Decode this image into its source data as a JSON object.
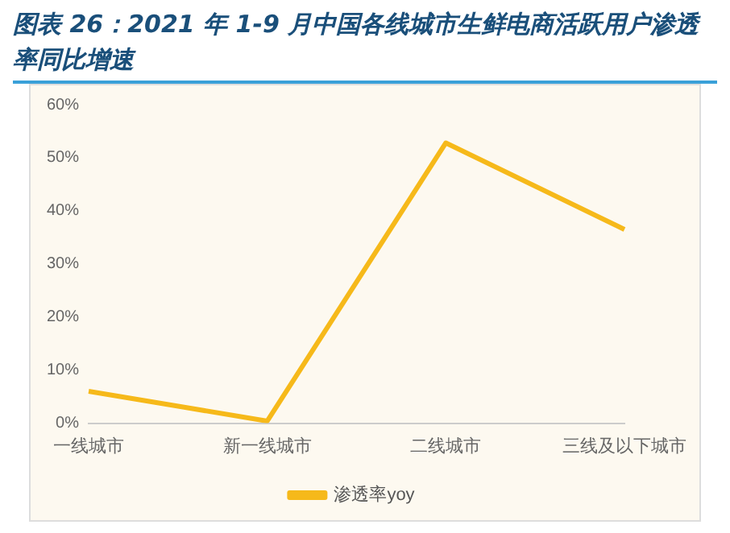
{
  "chart_data": {
    "type": "line",
    "title": "图表 26：2021 年 1-9 月中国各线城市生鲜电商活跃用户渗透率同比增速",
    "categories": [
      "一线城市",
      "新一线城市",
      "二线城市",
      "三线及以下城市"
    ],
    "series": [
      {
        "name": "渗透率yoy",
        "color": "#f6b91a",
        "values": [
          6.0,
          0.4,
          52.8,
          36.5
        ]
      }
    ],
    "ylim": [
      0,
      60
    ],
    "yticks": [
      {
        "value": 0,
        "label": "0%"
      },
      {
        "value": 10,
        "label": "10%"
      },
      {
        "value": 20,
        "label": "20%"
      },
      {
        "value": 30,
        "label": "30%"
      },
      {
        "value": 40,
        "label": "40%"
      },
      {
        "value": 50,
        "label": "50%"
      },
      {
        "value": 60,
        "label": "60%"
      }
    ],
    "grid": false,
    "legend": "bottom",
    "marker": "none",
    "line_style": "solid"
  }
}
